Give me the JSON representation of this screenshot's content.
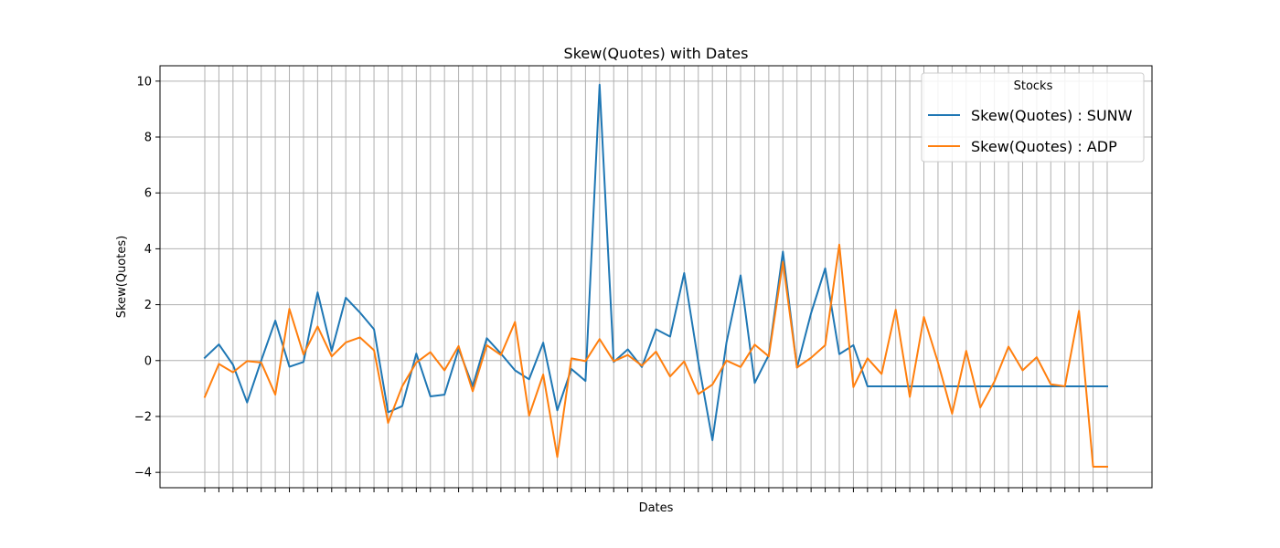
{
  "chart_data": {
    "type": "line",
    "title": "Skew(Quotes) with Dates",
    "xlabel": "Dates",
    "ylabel": "Skew(Quotes)",
    "ylim": [
      -4.55,
      10.55
    ],
    "yticks": [
      -4,
      -2,
      0,
      2,
      4,
      6,
      8,
      10
    ],
    "ytick_labels": [
      "−4",
      "−2",
      "0",
      "2",
      "4",
      "6",
      "8",
      "10"
    ],
    "x_tick_count": 65,
    "grid": true,
    "legend": {
      "title": "Stocks",
      "position": "top-right"
    },
    "series": [
      {
        "name": "Skew(Quotes) : SUNW",
        "color": "#1f77b4",
        "values": [
          0.1,
          0.58,
          -0.15,
          -1.5,
          0.0,
          1.43,
          -0.22,
          -0.05,
          2.44,
          0.35,
          2.25,
          1.72,
          1.12,
          -1.85,
          -1.63,
          0.25,
          -1.28,
          -1.22,
          0.42,
          -0.92,
          0.8,
          0.25,
          -0.35,
          -0.67,
          0.64,
          -1.78,
          -0.3,
          -0.73,
          9.87,
          -0.05,
          0.4,
          -0.23,
          1.12,
          0.86,
          3.13,
          -0.05,
          -2.85,
          0.65,
          3.05,
          -0.8,
          0.2,
          3.9,
          -0.25,
          1.7,
          3.3,
          0.23,
          0.55,
          -0.92,
          -0.92,
          -0.92,
          -0.92,
          -0.92,
          -0.92,
          -0.92,
          -0.92,
          -0.92,
          -0.92,
          -0.92,
          -0.92,
          -0.92,
          -0.92,
          -0.92,
          -0.92,
          -0.92,
          -0.92
        ]
      },
      {
        "name": "Skew(Quotes) : ADP",
        "color": "#ff7f0e",
        "values": [
          -1.3,
          -0.12,
          -0.42,
          -0.02,
          -0.07,
          -1.22,
          1.85,
          0.22,
          1.22,
          0.15,
          0.65,
          0.83,
          0.37,
          -2.23,
          -0.92,
          -0.07,
          0.3,
          -0.35,
          0.52,
          -1.1,
          0.55,
          0.2,
          1.38,
          -1.97,
          -0.5,
          -3.45,
          0.08,
          -0.02,
          0.77,
          -0.02,
          0.2,
          -0.18,
          0.32,
          -0.57,
          -0.03,
          -1.2,
          -0.86,
          0.0,
          -0.23,
          0.57,
          0.15,
          3.53,
          -0.25,
          0.1,
          0.55,
          4.15,
          -0.95,
          0.08,
          -0.48,
          1.82,
          -1.3,
          1.56,
          -0.07,
          -1.9,
          0.35,
          -1.68,
          -0.75,
          0.5,
          -0.35,
          0.12,
          -0.85,
          -0.92,
          1.78,
          -3.8,
          -3.8
        ]
      }
    ]
  }
}
